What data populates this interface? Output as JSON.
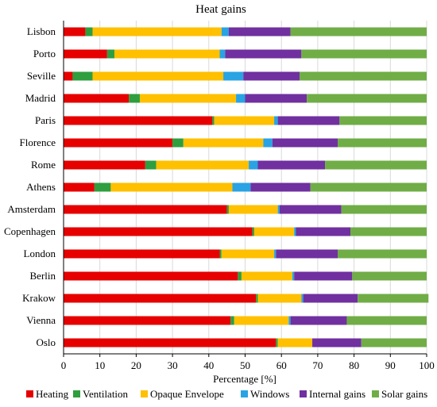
{
  "chart_data": {
    "type": "bar",
    "orientation": "horizontal",
    "stacked": true,
    "title": "Heat gains",
    "xlabel": "Percentage [%]",
    "ylabel": "",
    "xlim": [
      0,
      100
    ],
    "xticks": [
      0,
      10,
      20,
      30,
      40,
      50,
      60,
      70,
      80,
      90,
      100
    ],
    "grid": "vertical",
    "legend_position": "bottom",
    "categories": [
      "Lisbon",
      "Porto",
      "Seville",
      "Madrid",
      "Paris",
      "Florence",
      "Rome",
      "Athens",
      "Amsterdam",
      "Copenhagen",
      "London",
      "Berlin",
      "Krakow",
      "Vienna",
      "Oslo"
    ],
    "series": [
      {
        "name": "Heating",
        "color": "#e60000",
        "values": [
          6,
          12,
          2.5,
          18,
          41,
          30,
          22.5,
          8.5,
          45,
          52,
          43,
          48,
          53,
          46,
          58.5
        ]
      },
      {
        "name": "Ventilation",
        "color": "#2e9e3e",
        "values": [
          2,
          2,
          5.5,
          3,
          0.5,
          3,
          3,
          4.5,
          0.5,
          0.5,
          0.5,
          1,
          0.5,
          1,
          0.5
        ]
      },
      {
        "name": "Opaque Envelope",
        "color": "#ffc000",
        "values": [
          35.5,
          29,
          36,
          26.5,
          16.5,
          22,
          25.5,
          33.5,
          13.5,
          11,
          14.5,
          14,
          12,
          15,
          9.5
        ]
      },
      {
        "name": "Windows",
        "color": "#29a3e3",
        "values": [
          2,
          1.5,
          5.5,
          2.5,
          1,
          2.5,
          2.5,
          5,
          0.5,
          0.5,
          0.5,
          0.5,
          0.5,
          0.5,
          0
        ]
      },
      {
        "name": "Internal gains",
        "color": "#7030a0",
        "values": [
          17,
          21,
          15.5,
          17,
          17,
          18,
          18.5,
          16.5,
          17,
          15,
          17,
          16,
          15,
          15.5,
          13.5
        ]
      },
      {
        "name": "Solar gains",
        "color": "#70ad47",
        "values": [
          37.5,
          34.5,
          35,
          33,
          24,
          24.5,
          28,
          32,
          23.5,
          21,
          24.5,
          20.5,
          19.5,
          22,
          18
        ]
      }
    ]
  }
}
